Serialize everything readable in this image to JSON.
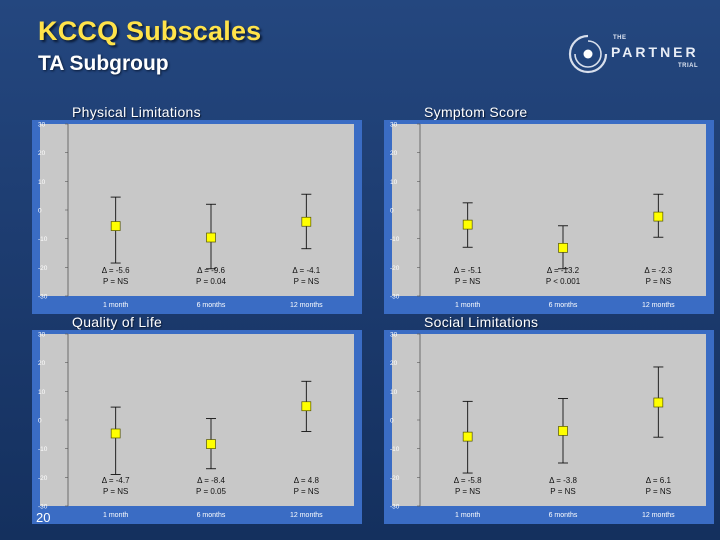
{
  "header": {
    "title": "KCCQ Subscales",
    "subtitle": "TA Subgroup",
    "logo_small": "THE",
    "logo_main": "PARTNER",
    "logo_sub": "TRIAL"
  },
  "page_number": "20",
  "colors": {
    "background": "#1d3c70",
    "title": "#ffe34a",
    "plot_bg": "#c8c8c8",
    "frame": "#3a6cc4",
    "marker": "#ffff00"
  },
  "chart_data": [
    {
      "type": "scatter",
      "title": "Physical Limitations",
      "categories": [
        "1 month",
        "6 months",
        "12 months"
      ],
      "ylim": [
        -30,
        30
      ],
      "yticks": [
        "30",
        "20",
        "10",
        "0",
        "-10",
        "-20",
        "-30"
      ],
      "ytick_values": [
        30,
        20,
        10,
        0,
        -10,
        -20,
        -30
      ],
      "values": [
        -5.6,
        -9.6,
        -4.1
      ],
      "err_low": [
        -18.5,
        -20.5,
        -13.5
      ],
      "err_high": [
        4.5,
        2.0,
        5.5
      ],
      "delta_text": [
        "Δ = -5.6",
        "Δ = -9.6",
        "Δ = -4.1"
      ],
      "p_text": [
        "P = NS",
        "P = 0.04",
        "P = NS"
      ],
      "grid": false
    },
    {
      "type": "scatter",
      "title": "Symptom Score",
      "categories": [
        "1 month",
        "6 months",
        "12 months"
      ],
      "ylim": [
        -30,
        30
      ],
      "yticks": [
        "30",
        "20",
        "10",
        "0",
        "-10",
        "-20",
        "-30"
      ],
      "ytick_values": [
        30,
        20,
        10,
        0,
        -10,
        -20,
        -30
      ],
      "values": [
        -5.1,
        -13.2,
        -2.3
      ],
      "err_low": [
        -13.0,
        -20.5,
        -9.5
      ],
      "err_high": [
        2.5,
        -5.5,
        5.5
      ],
      "delta_text": [
        "Δ = -5.1",
        "Δ = -13.2",
        "Δ = -2.3"
      ],
      "p_text": [
        "P = NS",
        "P < 0.001",
        "P = NS"
      ],
      "grid": false
    },
    {
      "type": "scatter",
      "title": "Quality of Life",
      "categories": [
        "1 month",
        "6 months",
        "12 months"
      ],
      "ylim": [
        -30,
        30
      ],
      "yticks": [
        "30",
        "20",
        "10",
        "0",
        "-10",
        "-20",
        "-30"
      ],
      "ytick_values": [
        30,
        20,
        10,
        0,
        -10,
        -20,
        -30
      ],
      "values": [
        -4.7,
        -8.4,
        4.8
      ],
      "err_low": [
        -19.0,
        -17.0,
        -4.0
      ],
      "err_high": [
        4.5,
        0.5,
        13.5
      ],
      "delta_text": [
        "Δ = -4.7",
        "Δ = -8.4",
        "Δ = 4.8"
      ],
      "p_text": [
        "P = NS",
        "P = 0.05",
        "P = NS"
      ],
      "grid": false
    },
    {
      "type": "scatter",
      "title": "Social Limitations",
      "categories": [
        "1 month",
        "6 months",
        "12 months"
      ],
      "ylim": [
        -30,
        30
      ],
      "yticks": [
        "30",
        "20",
        "10",
        "0",
        "-10",
        "-20",
        "-30"
      ],
      "ytick_values": [
        30,
        20,
        10,
        0,
        -10,
        -20,
        -30
      ],
      "values": [
        -5.8,
        -3.8,
        6.1
      ],
      "err_low": [
        -18.5,
        -15.0,
        -6.0
      ],
      "err_high": [
        6.5,
        7.5,
        18.5
      ],
      "delta_text": [
        "Δ = -5.8",
        "Δ = -3.8",
        "Δ = 6.1"
      ],
      "p_text": [
        "P = NS",
        "P = NS",
        "P = NS"
      ],
      "grid": false
    }
  ]
}
